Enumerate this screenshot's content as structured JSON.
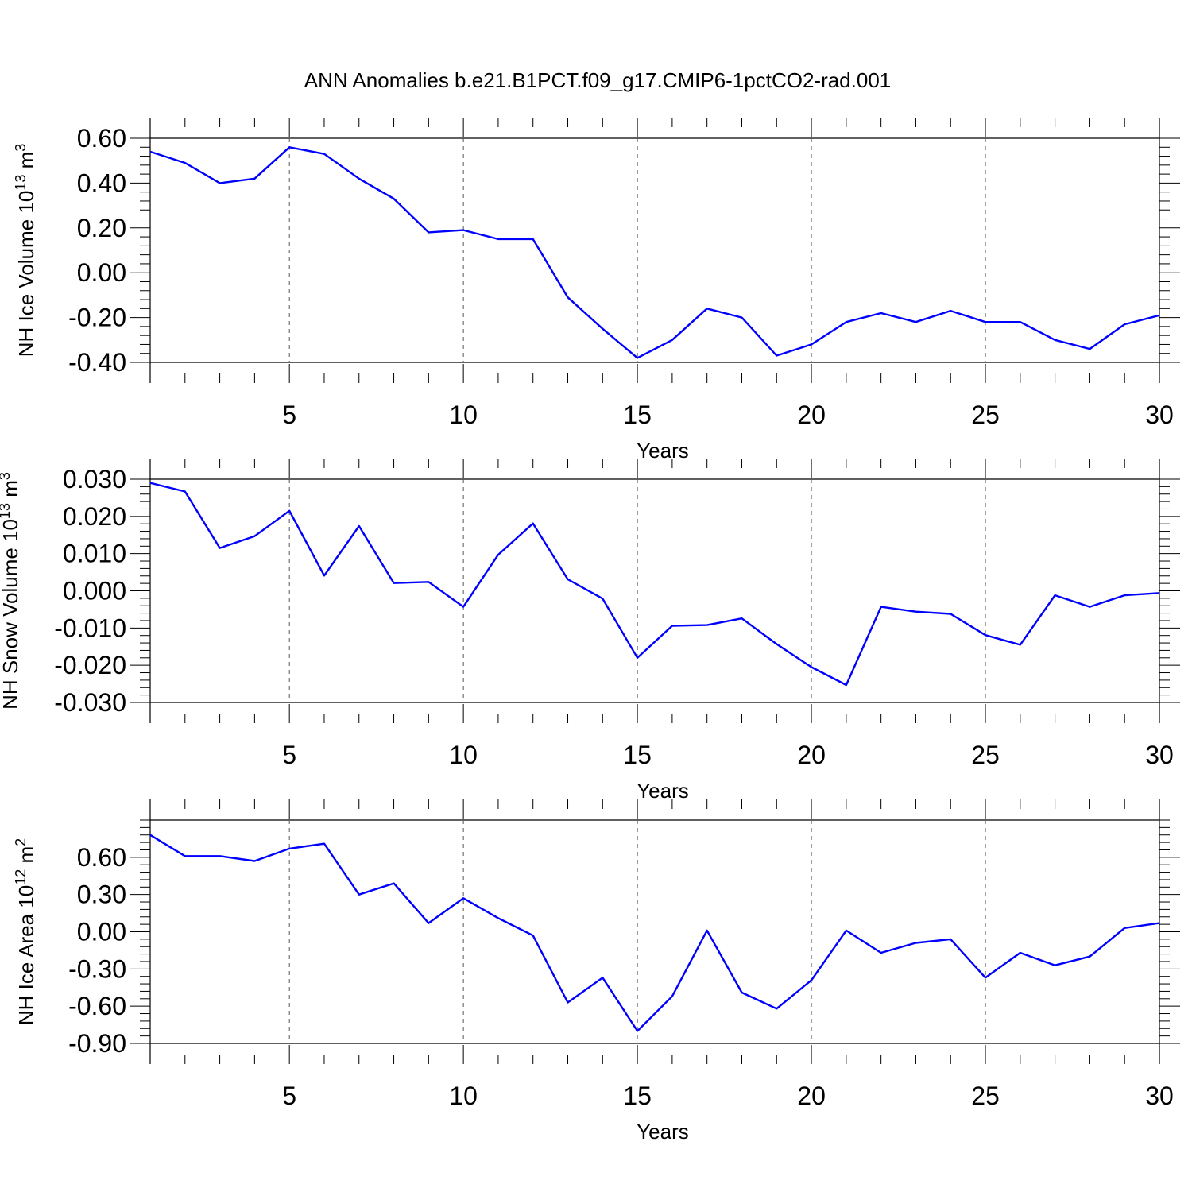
{
  "title": "ANN Anomalies b.e21.B1PCT.f09_g17.CMIP6-1pctCO2-rad.001",
  "colors": {
    "series": "#0000ff",
    "axis": "#000000",
    "grid": "#555555"
  },
  "chart_data": [
    {
      "type": "line",
      "xlabel": "Years",
      "ylabel_main": "NH Ice Volume 10",
      "ylabel_exp": "13",
      "ylabel_unit": " m",
      "ylabel_unit_exp": "3",
      "xlim": [
        1,
        30
      ],
      "ylim": [
        -0.4,
        0.6
      ],
      "xticks": [
        5,
        10,
        15,
        20,
        25,
        30
      ],
      "xtick_labels": [
        "5",
        "10",
        "15",
        "20",
        "25",
        "30"
      ],
      "yticks": [
        0.6,
        0.4,
        0.2,
        0.0,
        -0.2,
        -0.4
      ],
      "ytick_labels": [
        "0.60",
        "0.40",
        "0.20",
        "0.00",
        "-0.20",
        "-0.40"
      ],
      "grid": "dashed vertical at x ticks",
      "x": [
        1,
        2,
        3,
        4,
        5,
        6,
        7,
        8,
        9,
        10,
        11,
        12,
        13,
        14,
        15,
        16,
        17,
        18,
        19,
        20,
        21,
        22,
        23,
        24,
        25,
        26,
        27,
        28,
        29,
        30
      ],
      "values": [
        0.54,
        0.49,
        0.4,
        0.42,
        0.56,
        0.53,
        0.42,
        0.33,
        0.18,
        0.19,
        0.15,
        0.15,
        -0.11,
        -0.25,
        -0.38,
        -0.3,
        -0.16,
        -0.2,
        -0.37,
        -0.32,
        -0.22,
        -0.18,
        -0.22,
        -0.17,
        -0.22,
        -0.22,
        -0.3,
        -0.34,
        -0.23,
        -0.19
      ]
    },
    {
      "type": "line",
      "xlabel": "Years",
      "ylabel_main": "NH Snow Volume 10",
      "ylabel_exp": "13",
      "ylabel_unit": " m",
      "ylabel_unit_exp": "3",
      "xlim": [
        1,
        30
      ],
      "ylim": [
        -0.03,
        0.03
      ],
      "xticks": [
        5,
        10,
        15,
        20,
        25,
        30
      ],
      "xtick_labels": [
        "5",
        "10",
        "15",
        "20",
        "25",
        "30"
      ],
      "yticks": [
        0.03,
        0.02,
        0.01,
        0.0,
        -0.01,
        -0.02,
        -0.03
      ],
      "ytick_labels": [
        "0.030",
        "0.020",
        "0.010",
        "0.000",
        "-0.010",
        "-0.020",
        "-0.030"
      ],
      "grid": "dashed vertical at x ticks",
      "x": [
        1,
        2,
        3,
        4,
        5,
        6,
        7,
        8,
        9,
        10,
        11,
        12,
        13,
        14,
        15,
        16,
        17,
        18,
        19,
        20,
        21,
        22,
        23,
        24,
        25,
        26,
        27,
        28,
        29,
        30
      ],
      "values": [
        0.029,
        0.0267,
        0.0115,
        0.0147,
        0.0215,
        0.0041,
        0.0174,
        0.0021,
        0.0024,
        -0.0043,
        0.0097,
        0.0181,
        0.0031,
        -0.0021,
        -0.018,
        -0.0094,
        -0.0092,
        -0.0074,
        -0.0143,
        -0.0205,
        -0.0253,
        -0.0043,
        -0.0056,
        -0.0062,
        -0.0119,
        -0.0145,
        -0.0012,
        -0.0043,
        -0.0012,
        -0.0006
      ]
    },
    {
      "type": "line",
      "xlabel": "Years",
      "ylabel_main": "NH Ice Area 10",
      "ylabel_exp": "12",
      "ylabel_unit": " m",
      "ylabel_unit_exp": "2",
      "xlim": [
        1,
        30
      ],
      "ylim": [
        -0.9,
        0.9
      ],
      "xticks": [
        5,
        10,
        15,
        20,
        25,
        30
      ],
      "xtick_labels": [
        "5",
        "10",
        "15",
        "20",
        "25",
        "30"
      ],
      "yticks": [
        0.6,
        0.3,
        0.0,
        -0.3,
        -0.6,
        -0.9
      ],
      "ytick_labels": [
        "0.60",
        "0.30",
        "0.00",
        "-0.30",
        "-0.60",
        "-0.90"
      ],
      "grid": "dashed vertical at x ticks",
      "x": [
        1,
        2,
        3,
        4,
        5,
        6,
        7,
        8,
        9,
        10,
        11,
        12,
        13,
        14,
        15,
        16,
        17,
        18,
        19,
        20,
        21,
        22,
        23,
        24,
        25,
        26,
        27,
        28,
        29,
        30
      ],
      "values": [
        0.78,
        0.61,
        0.61,
        0.57,
        0.67,
        0.71,
        0.3,
        0.39,
        0.07,
        0.27,
        0.11,
        -0.03,
        -0.57,
        -0.37,
        -0.8,
        -0.52,
        0.01,
        -0.49,
        -0.62,
        -0.39,
        0.01,
        -0.17,
        -0.09,
        -0.06,
        -0.37,
        -0.17,
        -0.27,
        -0.2,
        0.03,
        0.07
      ]
    }
  ]
}
